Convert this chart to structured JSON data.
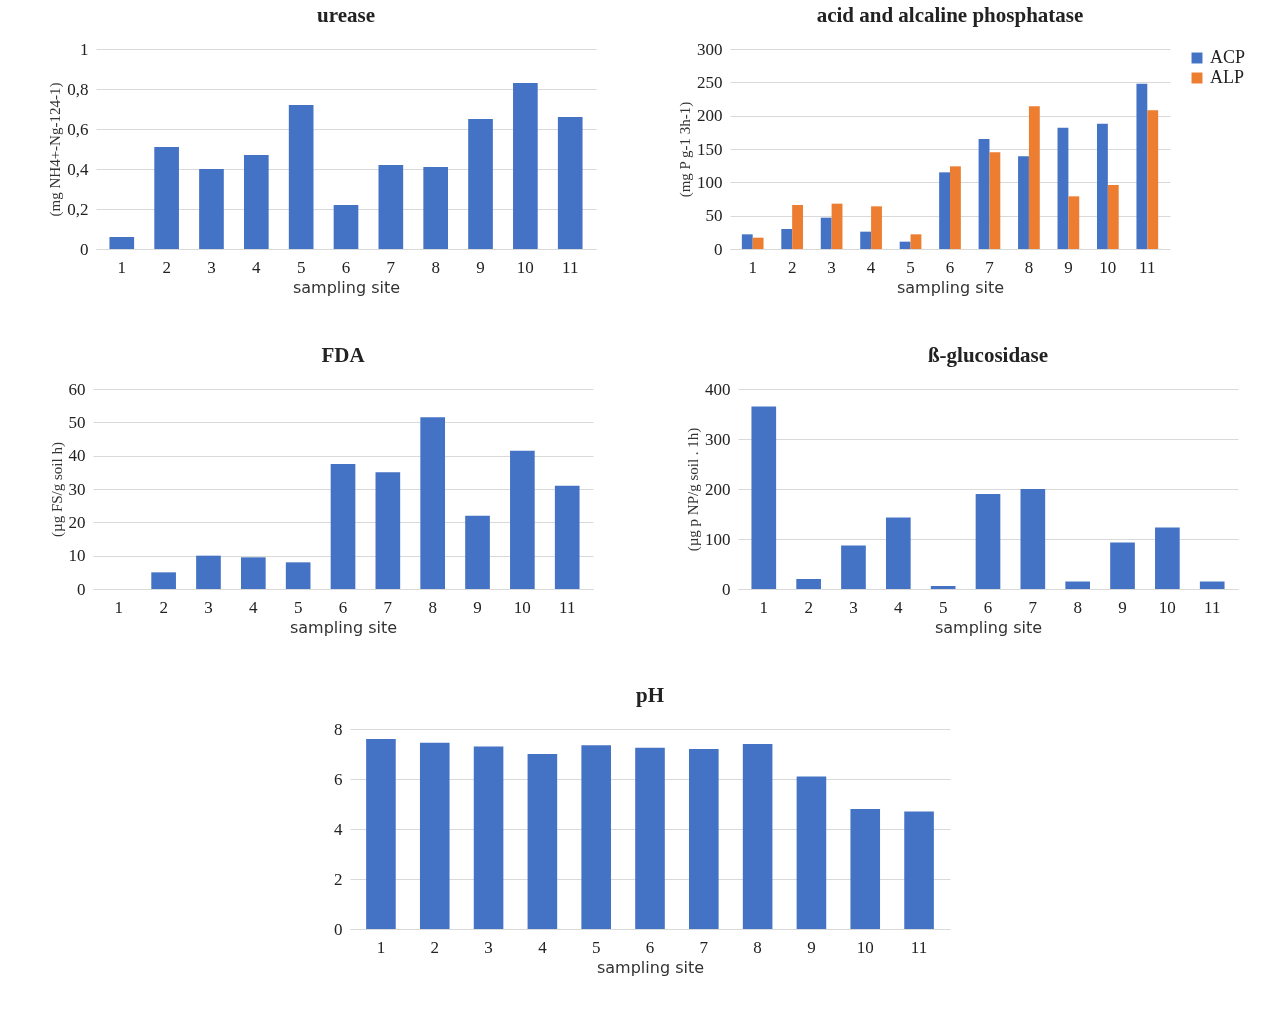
{
  "chart_data": [
    {
      "type": "bar",
      "title": "urease",
      "xlabel": "sampling site",
      "ylabel": "(mg NH4+-Ng-124-1)",
      "categories": [
        "1",
        "2",
        "3",
        "4",
        "5",
        "6",
        "7",
        "8",
        "9",
        "10",
        "11"
      ],
      "values": [
        0.06,
        0.51,
        0.4,
        0.47,
        0.72,
        0.22,
        0.42,
        0.41,
        0.65,
        0.83,
        0.66
      ],
      "color": "#4472c4",
      "ylim": [
        0,
        1
      ],
      "yticks": [
        0,
        {
          "value": 0.2,
          "label": "0,2"
        },
        {
          "value": 0.4,
          "label": "0,4"
        },
        {
          "value": 0.6,
          "label": "0,6"
        },
        {
          "value": 0.8,
          "label": "0,8"
        },
        1
      ],
      "grid": "y"
    },
    {
      "type": "bar",
      "title": "acid and alcaline phosphatase",
      "xlabel": "sampling site",
      "ylabel": "(mg  P g-1 3h-1)",
      "categories": [
        "1",
        "2",
        "3",
        "4",
        "5",
        "6",
        "7",
        "8",
        "9",
        "10",
        "11"
      ],
      "series": [
        {
          "name": "ACP",
          "color": "#4472c4",
          "values": [
            22,
            30,
            47,
            26,
            11,
            115,
            165,
            139,
            182,
            188,
            248
          ]
        },
        {
          "name": "ALP",
          "color": "#ed7d31",
          "values": [
            17,
            66,
            68,
            64,
            22,
            124,
            145,
            214,
            79,
            96,
            208
          ]
        }
      ],
      "ylim": [
        0,
        300
      ],
      "yticks": [
        0,
        50,
        100,
        150,
        200,
        250,
        300
      ],
      "grid": "y",
      "legend": "right"
    },
    {
      "type": "bar",
      "title": "FDA",
      "xlabel": "sampling site",
      "ylabel": "(µg  FS/g soil  h)",
      "categories": [
        "1",
        "2",
        "3",
        "4",
        "5",
        "6",
        "7",
        "8",
        "9",
        "10",
        "11"
      ],
      "values": [
        0,
        5,
        10,
        9.5,
        8,
        37.5,
        35,
        51.5,
        22,
        41.5,
        31
      ],
      "color": "#4472c4",
      "ylim": [
        0,
        60
      ],
      "yticks": [
        0,
        10,
        20,
        30,
        40,
        50,
        60
      ],
      "grid": "y"
    },
    {
      "type": "bar",
      "title": "ß-glucosidase",
      "xlabel": "sampling site",
      "ylabel": "(µg  p NP/g soil . 1h)",
      "categories": [
        "1",
        "2",
        "3",
        "4",
        "5",
        "6",
        "7",
        "8",
        "9",
        "10",
        "11"
      ],
      "values": [
        365,
        20,
        87,
        143,
        6,
        190,
        200,
        15,
        93,
        123,
        15
      ],
      "color": "#4472c4",
      "ylim": [
        0,
        400
      ],
      "yticks": [
        0,
        100,
        200,
        300,
        400
      ],
      "grid": "y"
    },
    {
      "type": "bar",
      "title": "pH",
      "xlabel": "sampling site",
      "categories": [
        "1",
        "2",
        "3",
        "4",
        "5",
        "6",
        "7",
        "8",
        "9",
        "10",
        "11"
      ],
      "values": [
        7.6,
        7.45,
        7.3,
        7.0,
        7.35,
        7.25,
        7.2,
        7.4,
        6.1,
        4.8,
        4.7
      ],
      "color": "#4472c4",
      "ylim": [
        0,
        8
      ],
      "yticks": [
        0,
        2,
        4,
        6,
        8
      ],
      "grid": "y"
    }
  ]
}
